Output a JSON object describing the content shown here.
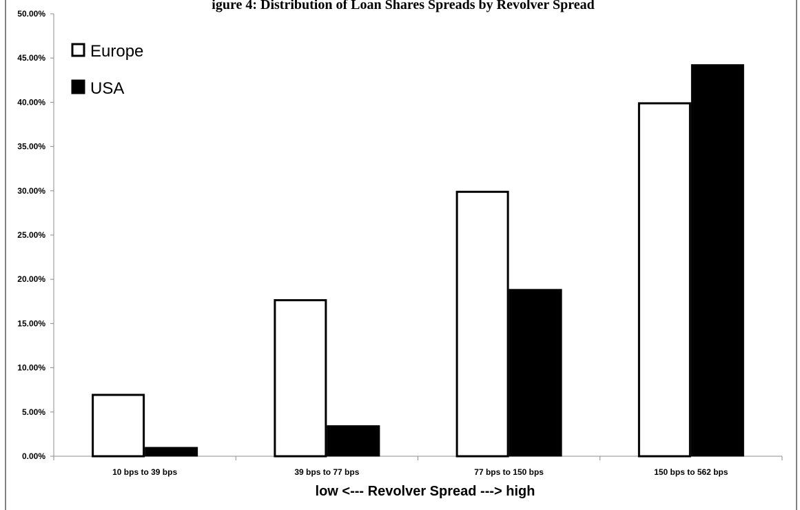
{
  "chart_data": {
    "type": "bar",
    "title": "igure 4: Distribution of Loan Shares Spreads by Revolver Spread",
    "xlabel": "low <--- Revolver Spread ---> high",
    "ylabel": "",
    "categories": [
      "10 bps to 39 bps",
      "39 bps to 77 bps",
      "77 bps to 150 bps",
      "150 bps to 562 bps"
    ],
    "series": [
      {
        "name": "Europe",
        "values": [
          0.0705,
          0.1775,
          0.3,
          0.4
        ],
        "fill": "#ffffff",
        "stroke": "#000000"
      },
      {
        "name": "USA",
        "values": [
          0.0105,
          0.035,
          0.189,
          0.443
        ],
        "fill": "#000000",
        "stroke": "#000000"
      }
    ],
    "ylim": [
      0,
      0.5
    ],
    "yticks": [
      "0.00%",
      "5.00%",
      "10.00%",
      "15.00%",
      "20.00%",
      "25.00%",
      "30.00%",
      "35.00%",
      "40.00%",
      "45.00%",
      "50.00%"
    ],
    "grid": false,
    "legend_position": "top-left"
  }
}
